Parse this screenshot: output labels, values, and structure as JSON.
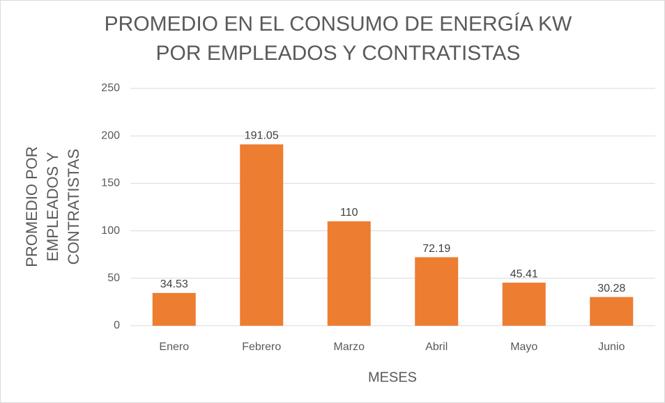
{
  "chart_data": {
    "type": "bar",
    "title": [
      "PROMEDIO EN EL  CONSUMO DE ENERGÍA KW",
      "POR EMPLEADOS Y CONTRATISTAS"
    ],
    "y_label": [
      "PROMEDIO POR",
      "EMPLEADOS Y",
      "CONTRATISTAS"
    ],
    "x_label": "MESES",
    "categories": [
      "Enero",
      "Febrero",
      "Marzo",
      "Abril",
      "Mayo",
      "Junio"
    ],
    "values": [
      34.53,
      191.05,
      110,
      72.19,
      45.41,
      30.28
    ],
    "color": "#ed7d31",
    "ylim": [
      0,
      250
    ],
    "yticks": [
      0,
      50,
      100,
      150,
      200,
      250
    ],
    "grid": true
  }
}
